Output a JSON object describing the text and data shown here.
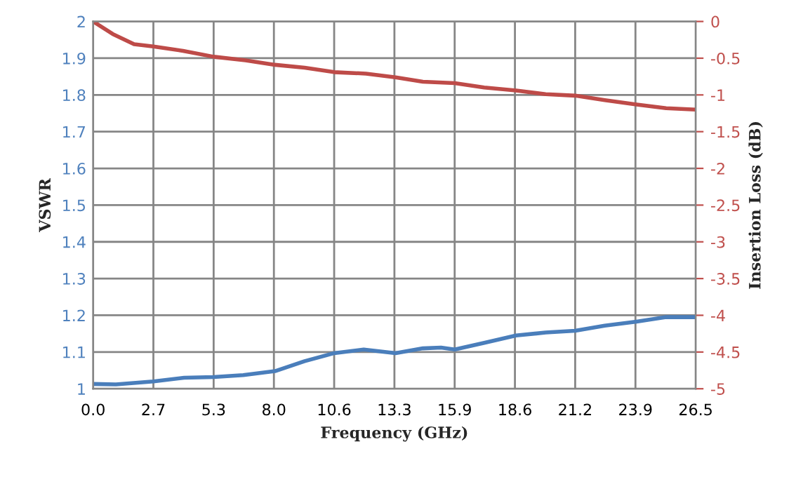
{
  "chart_data": {
    "type": "line",
    "xlabel": "Frequency (GHz)",
    "ylabel": "VSWR",
    "y2label": "Insertion Loss (dB)",
    "xlim": [
      0,
      26.5
    ],
    "xticks": [
      {
        "value": 0,
        "label": "0.0"
      },
      {
        "value": 2.65,
        "label": "2.7"
      },
      {
        "value": 5.3,
        "label": "5.3"
      },
      {
        "value": 7.95,
        "label": "8.0"
      },
      {
        "value": 10.6,
        "label": "10.6"
      },
      {
        "value": 13.25,
        "label": "13.3"
      },
      {
        "value": 15.9,
        "label": "15.9"
      },
      {
        "value": 18.55,
        "label": "18.6"
      },
      {
        "value": 21.2,
        "label": "21.2"
      },
      {
        "value": 23.85,
        "label": "23.9"
      },
      {
        "value": 26.5,
        "label": "26.5"
      }
    ],
    "ylim": [
      1,
      2
    ],
    "yticks": [
      1,
      1.1,
      1.2,
      1.3,
      1.4,
      1.5,
      1.6,
      1.7,
      1.8,
      1.9,
      2
    ],
    "y2lim": [
      -5,
      0
    ],
    "y2ticks": [
      -5,
      -4.5,
      -4,
      -3.5,
      -3,
      -2.5,
      -2,
      -1.5,
      -1,
      -0.5,
      0
    ],
    "grid": true,
    "marker": "none",
    "line_style": "solid",
    "series": [
      {
        "color": "#4a7ebb",
        "x": [
          0,
          1.0,
          2.65,
          4.0,
          5.3,
          6.6,
          8.0,
          9.3,
          10.6,
          11.9,
          13.3,
          14.5,
          15.3,
          15.9,
          17.2,
          18.6,
          19.9,
          21.2,
          22.5,
          23.9,
          25.2,
          26.5
        ],
        "values": [
          1.013,
          1.012,
          1.02,
          1.03,
          1.032,
          1.037,
          1.048,
          1.075,
          1.097,
          1.107,
          1.097,
          1.11,
          1.112,
          1.107,
          1.125,
          1.145,
          1.153,
          1.158,
          1.172,
          1.183,
          1.195,
          1.195
        ]
      },
      {
        "color": "#be4b48",
        "axis": "y2",
        "x": [
          0,
          0.86,
          1.8,
          2.65,
          3.95,
          5.3,
          6.7,
          8.0,
          9.3,
          10.6,
          12.0,
          13.3,
          14.5,
          15.9,
          17.2,
          18.6,
          19.9,
          21.2,
          22.5,
          23.9,
          25.2,
          26.5
        ],
        "values": [
          0,
          -0.17,
          -0.31,
          -0.34,
          -0.4,
          -0.48,
          -0.53,
          -0.59,
          -0.63,
          -0.69,
          -0.71,
          -0.76,
          -0.82,
          -0.84,
          -0.9,
          -0.94,
          -0.99,
          -1.01,
          -1.07,
          -1.13,
          -1.18,
          -1.2
        ]
      }
    ]
  }
}
